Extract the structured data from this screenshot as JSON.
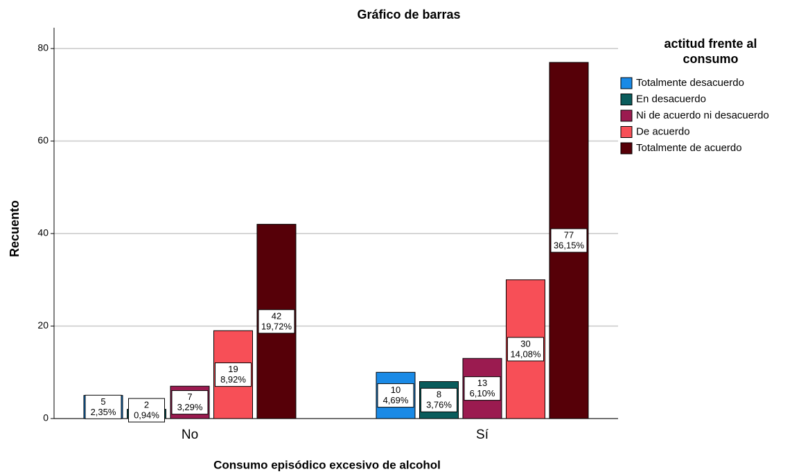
{
  "chart_data": {
    "type": "bar",
    "title": "Gráfico de barras",
    "x_label": "Consumo episódico excesivo de alcohol",
    "y_label": "Recuento",
    "legend_title": "actitud frente al consumo",
    "legend_position": "right",
    "categories": [
      "No",
      "Sí"
    ],
    "series": [
      {
        "name": "Totalmente desacuerdo",
        "color": "#1a8ae6",
        "values": [
          5,
          10
        ],
        "percent_labels": [
          "2,35%",
          "4,69%"
        ]
      },
      {
        "name": "En desacuerdo",
        "color": "#0a5c5c",
        "values": [
          2,
          8
        ],
        "percent_labels": [
          "0,94%",
          "3,76%"
        ]
      },
      {
        "name": "Ni de acuerdo ni desacuerdo",
        "color": "#9b1b50",
        "values": [
          7,
          13
        ],
        "percent_labels": [
          "3,29%",
          "6,10%"
        ]
      },
      {
        "name": "De acuerdo",
        "color": "#f74f57",
        "values": [
          19,
          30
        ],
        "percent_labels": [
          "8,92%",
          "14,08%"
        ]
      },
      {
        "name": "Totalmente de acuerdo",
        "color": "#560008",
        "values": [
          42,
          77
        ],
        "percent_labels": [
          "19,72%",
          "36,15%"
        ]
      }
    ],
    "ylim": [
      0,
      84.5
    ],
    "yticks": [
      0,
      20,
      40,
      60,
      80
    ],
    "grid": true
  }
}
